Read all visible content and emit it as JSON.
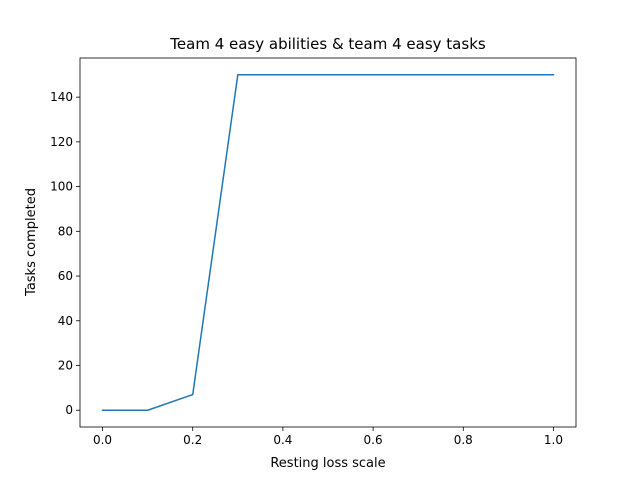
{
  "chart_data": {
    "type": "line",
    "title": "Team 4 easy abilities & team 4 easy tasks",
    "xlabel": "Resting loss scale",
    "ylabel": "Tasks completed",
    "xlim": [
      -0.05,
      1.05
    ],
    "ylim": [
      -7.5,
      157.5
    ],
    "xticks": [
      0.0,
      0.2,
      0.4,
      0.6,
      0.8,
      1.0
    ],
    "xtick_labels": [
      "0.0",
      "0.2",
      "0.4",
      "0.6",
      "0.8",
      "1.0"
    ],
    "yticks": [
      0,
      20,
      40,
      60,
      80,
      100,
      120,
      140
    ],
    "ytick_labels": [
      "0",
      "20",
      "40",
      "60",
      "80",
      "100",
      "120",
      "140"
    ],
    "grid": false,
    "series": [
      {
        "color": "#1f77b4",
        "x": [
          0.0,
          0.1,
          0.2,
          0.3,
          0.4,
          0.5,
          0.6,
          0.7,
          0.8,
          0.9,
          1.0
        ],
        "y": [
          0,
          0,
          7,
          150,
          150,
          150,
          150,
          150,
          150,
          150,
          150
        ]
      }
    ]
  }
}
